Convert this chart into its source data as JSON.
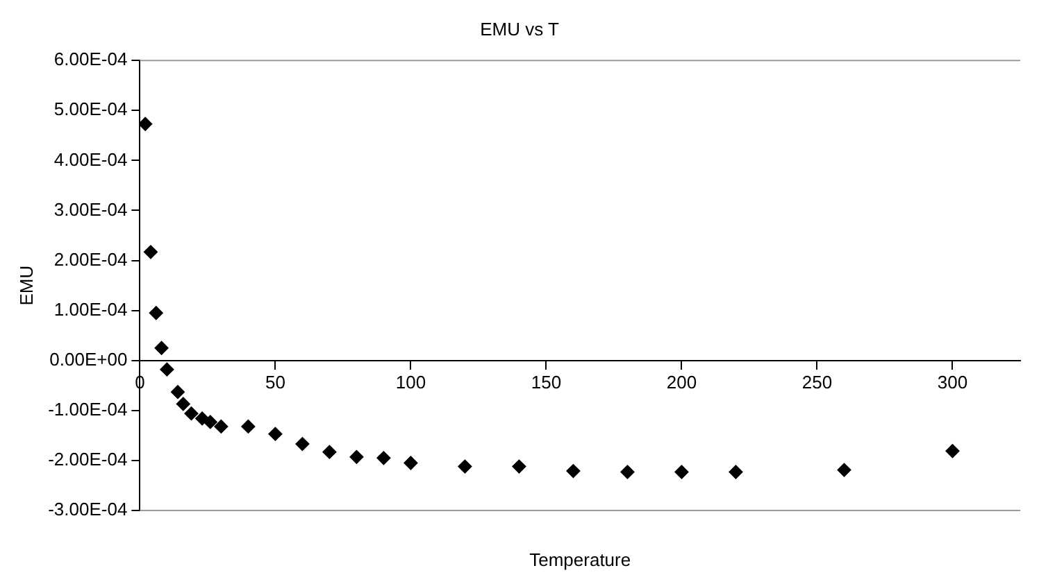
{
  "chart_data": {
    "type": "scatter",
    "title": "EMU vs T",
    "xlabel": "Temperature",
    "ylabel": "EMU",
    "marker": "diamond",
    "grid": false,
    "legend": false,
    "x": [
      2,
      4,
      6,
      8,
      10,
      14,
      16,
      19,
      23,
      26,
      30,
      40,
      50,
      60,
      70,
      80,
      90,
      100,
      120,
      140,
      160,
      180,
      200,
      220,
      260,
      300
    ],
    "series": [
      {
        "color": "#000000",
        "values": [
          0.000473,
          0.000217,
          9.5e-05,
          2.5e-05,
          -1.8e-05,
          -6.3e-05,
          -8.7e-05,
          -0.000106,
          -0.000116,
          -0.000123,
          -0.000132,
          -0.000132,
          -0.000147,
          -0.000167,
          -0.000183,
          -0.000193,
          -0.000195,
          -0.000205,
          -0.000212,
          -0.000212,
          -0.000221,
          -0.000223,
          -0.000223,
          -0.000223,
          -0.000219,
          -0.000181
        ]
      }
    ],
    "xlim": [
      0,
      325
    ],
    "xticks": [
      0,
      50,
      100,
      150,
      200,
      250,
      300
    ],
    "ylim": [
      -0.0003,
      0.0006
    ],
    "yticks": [
      {
        "value": -0.0003,
        "label": "-3.00E-04"
      },
      {
        "value": -0.0002,
        "label": "-2.00E-04"
      },
      {
        "value": -0.0001,
        "label": "-1.00E-04"
      },
      {
        "value": 0,
        "label": "0.00E+00"
      },
      {
        "value": 0.0001,
        "label": "1.00E-04"
      },
      {
        "value": 0.0002,
        "label": "2.00E-04"
      },
      {
        "value": 0.0003,
        "label": "3.00E-04"
      },
      {
        "value": 0.0004,
        "label": "4.00E-04"
      },
      {
        "value": 0.0005,
        "label": "5.00E-04"
      },
      {
        "value": 0.0006,
        "label": "6.00E-04"
      }
    ]
  }
}
